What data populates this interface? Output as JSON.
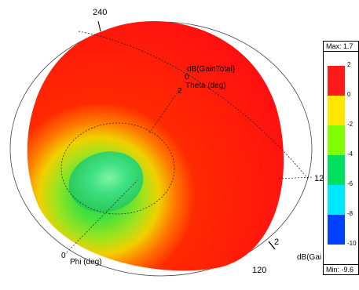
{
  "plot": {
    "labels": {
      "top_angle": "240",
      "bottom_angle": "120",
      "right_angle": "12",
      "right_small": "2",
      "origin_zero": "0",
      "phi_axis": "Phi (deg)",
      "gain_axis": "dB(GainTotal)",
      "theta_axis": "Theta (deg)",
      "theta_zero": "0",
      "theta_small": "2",
      "bottom_legend_title": "dB(Gai"
    }
  },
  "legend": {
    "max_label": "Max: 1.7",
    "min_label": "Min: -9.6",
    "ticks": [
      "2",
      "0",
      "-2",
      "-4",
      "-6",
      "-8",
      "-10"
    ],
    "colors": [
      "#ff1a1a",
      "#ffe600",
      "#80ff00",
      "#00e060",
      "#00e8ff",
      "#0040ff",
      "#0000e0"
    ]
  }
}
